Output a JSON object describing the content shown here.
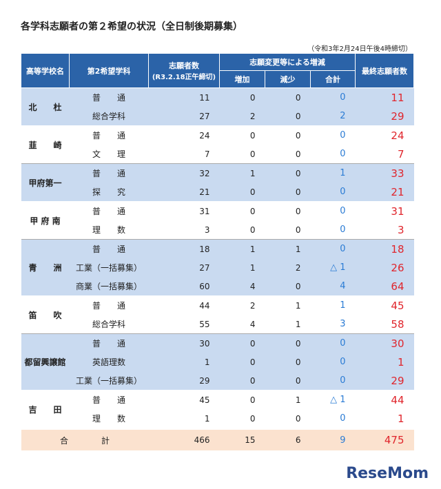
{
  "title": "各学科志願者の第２希望の状況（全日制後期募集）",
  "note": "（令和3年2月24日午後4時締切）",
  "table": {
    "headers": {
      "school": "高等学校名",
      "course": "第2希望学科",
      "applicants": "志願者数",
      "applicants_sub": "(R3.2.18正午締切)",
      "change": "志願変更等による増減",
      "increase": "増加",
      "decrease": "減少",
      "subtotal": "合計",
      "final": "最終志願者数"
    },
    "groups": [
      {
        "school": "北　　杜",
        "rows": [
          [
            "普　　通",
            11,
            0,
            0,
            0,
            11
          ],
          [
            "総合学科",
            27,
            2,
            0,
            2,
            29
          ]
        ]
      },
      {
        "school": "韮　　崎",
        "rows": [
          [
            "普　　通",
            24,
            0,
            0,
            0,
            24
          ],
          [
            "文　　理",
            7,
            0,
            0,
            0,
            7
          ]
        ]
      },
      {
        "school": "甲府第一",
        "rows": [
          [
            "普　　通",
            32,
            1,
            0,
            1,
            33
          ],
          [
            "探　　究",
            21,
            0,
            0,
            0,
            21
          ]
        ]
      },
      {
        "school": "甲 府 南",
        "rows": [
          [
            "普　　通",
            31,
            0,
            0,
            0,
            31
          ],
          [
            "理　　数",
            3,
            0,
            0,
            0,
            3
          ]
        ]
      },
      {
        "school": "青　　洲",
        "rows": [
          [
            "普　　通",
            18,
            1,
            1,
            0,
            18
          ],
          [
            "工業（一括募集）",
            27,
            1,
            2,
            "△ 1",
            26
          ],
          [
            "商業（一括募集）",
            60,
            4,
            0,
            4,
            64
          ]
        ]
      },
      {
        "school": "笛　　吹",
        "rows": [
          [
            "普　　通",
            44,
            2,
            1,
            1,
            45
          ],
          [
            "総合学科",
            55,
            4,
            1,
            3,
            58
          ]
        ]
      },
      {
        "school": "都留興譲館",
        "rows": [
          [
            "普　　通",
            30,
            0,
            0,
            0,
            30
          ],
          [
            "英語理数",
            1,
            0,
            0,
            0,
            1
          ],
          [
            "工業（一括募集）",
            29,
            0,
            0,
            0,
            29
          ]
        ]
      },
      {
        "school": "吉　　田",
        "rows": [
          [
            "普　　通",
            45,
            0,
            1,
            "△ 1",
            44
          ],
          [
            "理　　数",
            1,
            0,
            0,
            0,
            1
          ]
        ]
      }
    ],
    "total": {
      "label": "合　　　　計",
      "applicants": 466,
      "increase": 15,
      "decrease": 6,
      "subtotal": 9,
      "final": 475
    }
  },
  "watermark": "ReseMom"
}
